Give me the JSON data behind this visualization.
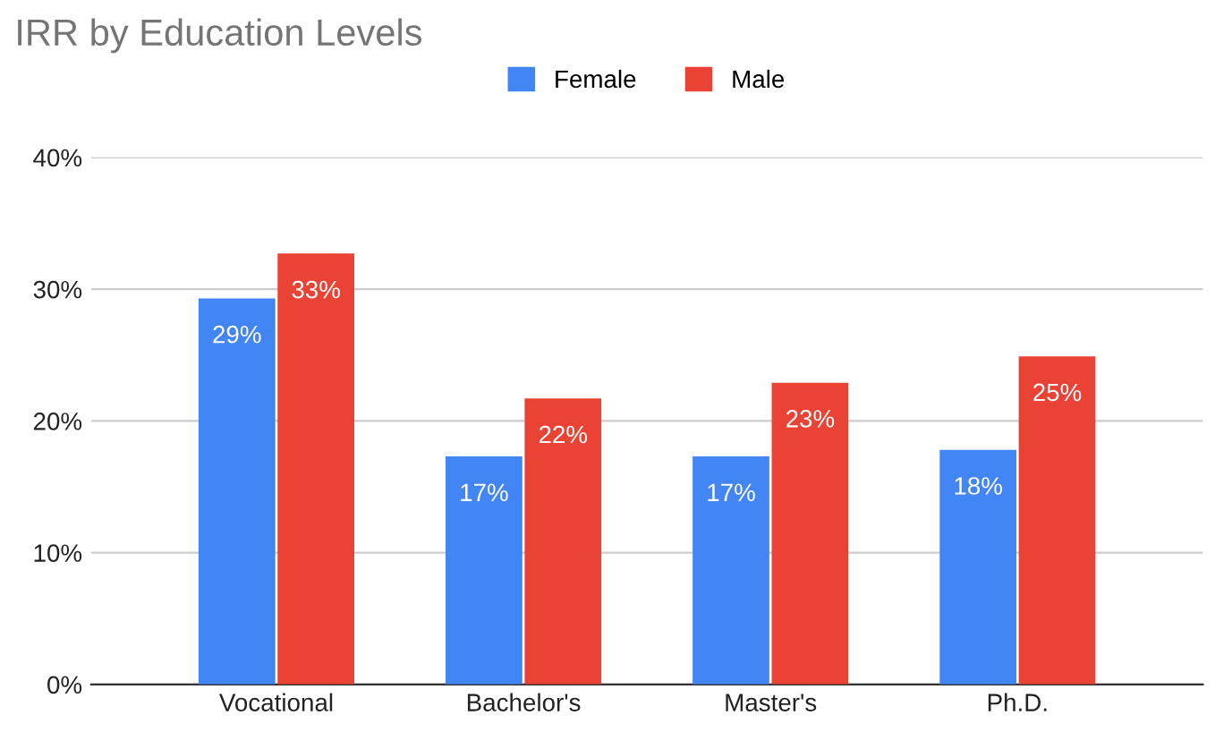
{
  "chart_data": {
    "type": "bar",
    "title": "IRR by Education Levels",
    "categories": [
      "Vocational",
      "Bachelor's",
      "Master's",
      "Ph.D."
    ],
    "series": [
      {
        "name": "Female",
        "color": "#4285f4",
        "values": [
          29.3,
          17.3,
          17.3,
          17.8
        ],
        "value_labels": [
          "29%",
          "17%",
          "17%",
          "18%"
        ]
      },
      {
        "name": "Male",
        "color": "#ea4335",
        "values": [
          32.7,
          21.7,
          22.9,
          24.9
        ],
        "value_labels": [
          "33%",
          "22%",
          "23%",
          "25%"
        ]
      }
    ],
    "ylim": [
      0,
      40
    ],
    "yticks": [
      {
        "value": 0,
        "label": "0%"
      },
      {
        "value": 10,
        "label": "10%"
      },
      {
        "value": 20,
        "label": "20%"
      },
      {
        "value": 30,
        "label": "30%"
      },
      {
        "value": 40,
        "label": "40%"
      }
    ],
    "grid": "y",
    "legend": "top"
  }
}
